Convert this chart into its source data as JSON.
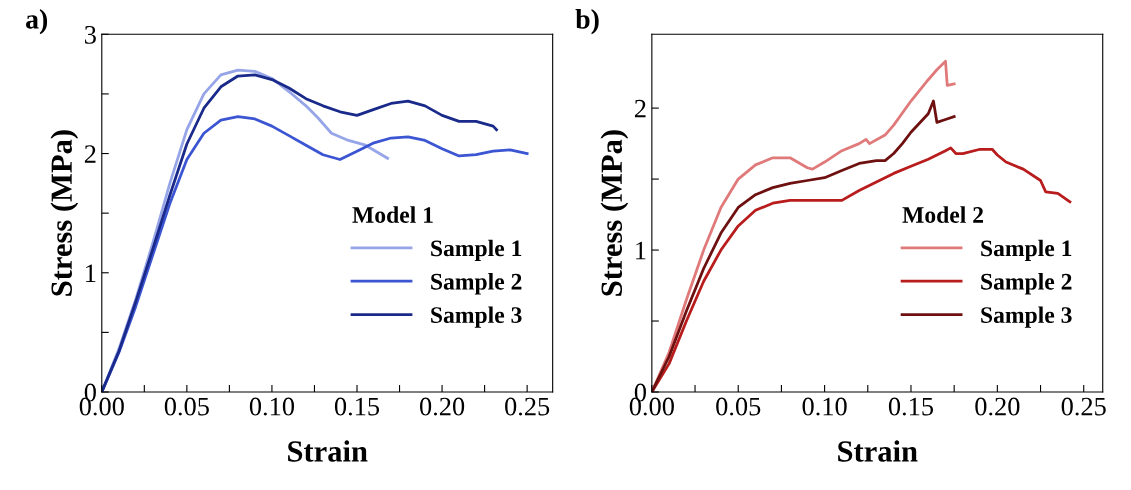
{
  "chart_data": [
    {
      "type": "line",
      "title": "a)",
      "xlabel": "Strain",
      "ylabel": "Stress (MPa)",
      "legend_title": "Model 1",
      "legend": "bottom right",
      "grid": false,
      "xlim": [
        0,
        0.265
      ],
      "ylim": [
        0,
        3
      ],
      "xticks": [
        {
          "value": 0,
          "label": "0.00"
        },
        {
          "value": 0.025,
          "label": null
        },
        {
          "value": 0.05,
          "label": "0.05"
        },
        {
          "value": 0.075,
          "label": null
        },
        {
          "value": 0.1,
          "label": "0.10"
        },
        {
          "value": 0.125,
          "label": null
        },
        {
          "value": 0.15,
          "label": "0.15"
        },
        {
          "value": 0.175,
          "label": null
        },
        {
          "value": 0.2,
          "label": "0.20"
        },
        {
          "value": 0.225,
          "label": null
        },
        {
          "value": 0.25,
          "label": "0.25"
        }
      ],
      "yticks": [
        0,
        {
          "value": 0.5,
          "label": null
        },
        1,
        {
          "value": 1.5,
          "label": null
        },
        2,
        {
          "value": 2.5,
          "label": null
        },
        3
      ],
      "series": [
        {
          "name": "Sample 1",
          "color": "#96a5e8",
          "x": [
            0,
            0.01,
            0.02,
            0.03,
            0.04,
            0.05,
            0.06,
            0.07,
            0.08,
            0.09,
            0.1,
            0.11,
            0.12,
            0.127,
            0.135,
            0.145,
            0.155,
            0.168
          ],
          "values": [
            0,
            0.36,
            0.78,
            1.25,
            1.75,
            2.2,
            2.5,
            2.66,
            2.7,
            2.69,
            2.63,
            2.52,
            2.4,
            2.3,
            2.17,
            2.11,
            2.07,
            1.96
          ]
        },
        {
          "name": "Sample 2",
          "color": "#3c55d2",
          "x": [
            0,
            0.01,
            0.02,
            0.03,
            0.04,
            0.05,
            0.06,
            0.07,
            0.08,
            0.09,
            0.1,
            0.11,
            0.12,
            0.13,
            0.14,
            0.15,
            0.16,
            0.17,
            0.18,
            0.19,
            0.2,
            0.21,
            0.22,
            0.23,
            0.24,
            0.25
          ],
          "values": [
            0,
            0.33,
            0.72,
            1.15,
            1.58,
            1.95,
            2.17,
            2.28,
            2.31,
            2.29,
            2.23,
            2.15,
            2.07,
            1.99,
            1.95,
            2.02,
            2.09,
            2.13,
            2.14,
            2.11,
            2.04,
            1.98,
            1.99,
            2.02,
            2.03,
            2.0
          ]
        },
        {
          "name": "Sample 3",
          "color": "#1a2a8a",
          "x": [
            0,
            0.01,
            0.02,
            0.03,
            0.04,
            0.05,
            0.06,
            0.07,
            0.08,
            0.09,
            0.1,
            0.11,
            0.12,
            0.13,
            0.14,
            0.15,
            0.16,
            0.17,
            0.18,
            0.19,
            0.2,
            0.21,
            0.22,
            0.23,
            0.232
          ],
          "values": [
            0,
            0.34,
            0.76,
            1.2,
            1.65,
            2.08,
            2.38,
            2.56,
            2.65,
            2.66,
            2.62,
            2.55,
            2.46,
            2.4,
            2.35,
            2.32,
            2.37,
            2.42,
            2.44,
            2.4,
            2.32,
            2.27,
            2.27,
            2.23,
            2.2
          ]
        }
      ]
    },
    {
      "type": "line",
      "title": "b)",
      "xlabel": "Strain",
      "ylabel": "Stress (MPa)",
      "legend_title": "Model 2",
      "legend": "bottom right",
      "grid": false,
      "xlim": [
        0,
        0.261
      ],
      "ylim": [
        0,
        2.52
      ],
      "xticks": [
        {
          "value": 0,
          "label": "0.00"
        },
        {
          "value": 0.025,
          "label": null
        },
        {
          "value": 0.05,
          "label": "0.05"
        },
        {
          "value": 0.075,
          "label": null
        },
        {
          "value": 0.1,
          "label": "0.10"
        },
        {
          "value": 0.125,
          "label": null
        },
        {
          "value": 0.15,
          "label": "0.15"
        },
        {
          "value": 0.175,
          "label": null
        },
        {
          "value": 0.2,
          "label": "0.20"
        },
        {
          "value": 0.225,
          "label": null
        },
        {
          "value": 0.25,
          "label": "0.25"
        }
      ],
      "yticks": [
        0,
        {
          "value": 0.5,
          "label": null
        },
        1,
        {
          "value": 1.5,
          "label": null
        },
        2
      ],
      "series": [
        {
          "name": "Sample 1",
          "color": "#e07a7a",
          "x": [
            0,
            0.01,
            0.02,
            0.03,
            0.04,
            0.05,
            0.06,
            0.07,
            0.08,
            0.09,
            0.093,
            0.1,
            0.11,
            0.12,
            0.124,
            0.126,
            0.135,
            0.14,
            0.15,
            0.16,
            0.165,
            0.17,
            0.171,
            0.175
          ],
          "values": [
            0,
            0.28,
            0.65,
            1.0,
            1.3,
            1.5,
            1.6,
            1.65,
            1.65,
            1.58,
            1.57,
            1.62,
            1.7,
            1.75,
            1.78,
            1.75,
            1.81,
            1.88,
            2.05,
            2.2,
            2.27,
            2.33,
            2.16,
            2.17
          ]
        },
        {
          "name": "Sample 2",
          "color": "#b81c1c",
          "x": [
            0,
            0.01,
            0.02,
            0.03,
            0.04,
            0.05,
            0.06,
            0.07,
            0.08,
            0.1,
            0.11,
            0.12,
            0.13,
            0.14,
            0.15,
            0.16,
            0.17,
            0.173,
            0.176,
            0.18,
            0.19,
            0.197,
            0.2,
            0.205,
            0.215,
            0.225,
            0.228,
            0.235,
            0.242
          ],
          "values": [
            0,
            0.2,
            0.5,
            0.78,
            1.0,
            1.17,
            1.28,
            1.33,
            1.35,
            1.35,
            1.35,
            1.42,
            1.48,
            1.54,
            1.59,
            1.64,
            1.7,
            1.72,
            1.68,
            1.68,
            1.71,
            1.71,
            1.67,
            1.62,
            1.57,
            1.49,
            1.41,
            1.4,
            1.34
          ]
        },
        {
          "name": "Sample 3",
          "color": "#6e1010",
          "x": [
            0,
            0.01,
            0.02,
            0.03,
            0.04,
            0.05,
            0.06,
            0.07,
            0.08,
            0.09,
            0.1,
            0.11,
            0.12,
            0.13,
            0.135,
            0.14,
            0.145,
            0.15,
            0.16,
            0.163,
            0.165,
            0.17,
            0.175
          ],
          "values": [
            0,
            0.25,
            0.57,
            0.87,
            1.12,
            1.3,
            1.39,
            1.44,
            1.47,
            1.49,
            1.51,
            1.56,
            1.61,
            1.63,
            1.63,
            1.68,
            1.75,
            1.83,
            1.96,
            2.05,
            1.9,
            1.92,
            1.94
          ]
        }
      ]
    }
  ]
}
